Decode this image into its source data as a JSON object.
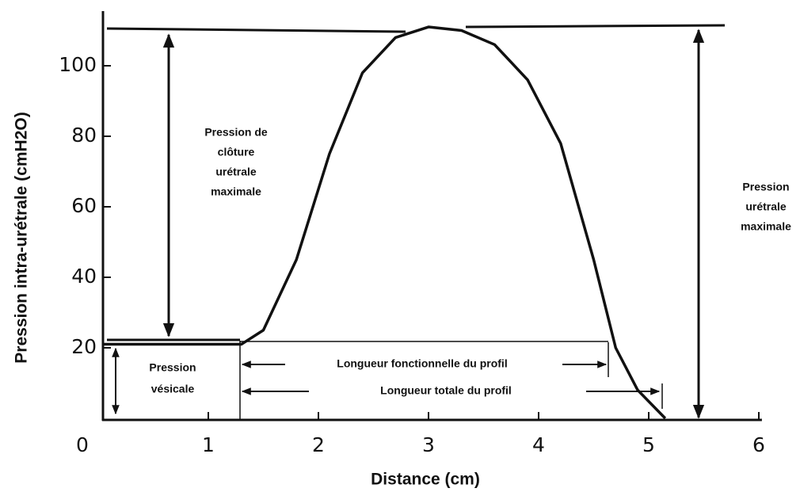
{
  "chart_data": {
    "type": "line",
    "x_label": "Distance  (cm)",
    "y_label": "Pression intra-urétrale  (cmH2O)",
    "x": [
      0.05,
      1.3,
      1.5,
      1.8,
      2.1,
      2.4,
      2.7,
      3.0,
      3.3,
      3.6,
      3.9,
      4.2,
      4.5,
      4.7,
      4.9,
      5.15
    ],
    "series": [
      {
        "color": "#111111",
        "values": [
          21,
          21,
          25,
          45,
          75,
          98,
          108,
          111,
          110,
          106,
          96,
          78,
          45,
          20,
          8,
          0
        ]
      }
    ],
    "xlim": [
      0,
      6.1
    ],
    "ylim": [
      0,
      114
    ],
    "xticks": [
      0,
      1,
      2,
      3,
      4,
      5,
      6
    ],
    "yticks": [
      20,
      40,
      60,
      80,
      100
    ],
    "annotations": [
      {
        "lines": [
          "Pression de",
          "clôture",
          "urétrale",
          "maximale"
        ]
      },
      {
        "lines": [
          "Pression",
          "urétrale",
          "maximale"
        ]
      },
      {
        "lines": [
          "Pression",
          "vésicale"
        ]
      },
      {
        "lines": [
          "Longueur fonctionnelle du profil"
        ]
      },
      {
        "lines": [
          "Longueur totale du profil"
        ]
      }
    ]
  }
}
